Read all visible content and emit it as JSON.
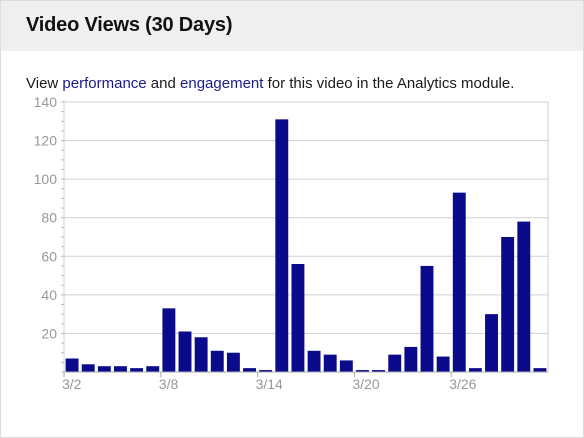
{
  "header": {
    "title": "Video Views (30 Days)"
  },
  "description": {
    "prefix": "View ",
    "link_performance": "performance",
    "middle": " and ",
    "link_engagement": "engagement",
    "suffix": " for this video in the Analytics module."
  },
  "colors": {
    "bar": "#0a0a8a",
    "link": "#1a1a8c",
    "grid": "#d0d0d0",
    "axis_text": "#999999",
    "header_bg": "#efefef"
  },
  "chart_data": {
    "type": "bar",
    "ylim": [
      0,
      140
    ],
    "y_ticks": [
      20,
      40,
      60,
      80,
      100,
      120,
      140
    ],
    "x_tick_labels": [
      {
        "label": "3/2",
        "index": 0
      },
      {
        "label": "3/8",
        "index": 6
      },
      {
        "label": "3/14",
        "index": 12
      },
      {
        "label": "3/20",
        "index": 18
      },
      {
        "label": "3/26",
        "index": 24
      }
    ],
    "values": [
      7,
      4,
      3,
      3,
      2,
      3,
      33,
      21,
      18,
      11,
      10,
      2,
      1,
      131,
      56,
      11,
      9,
      6,
      1,
      1,
      9,
      13,
      55,
      8,
      93,
      2,
      30,
      70,
      78,
      2
    ],
    "grid": true
  }
}
